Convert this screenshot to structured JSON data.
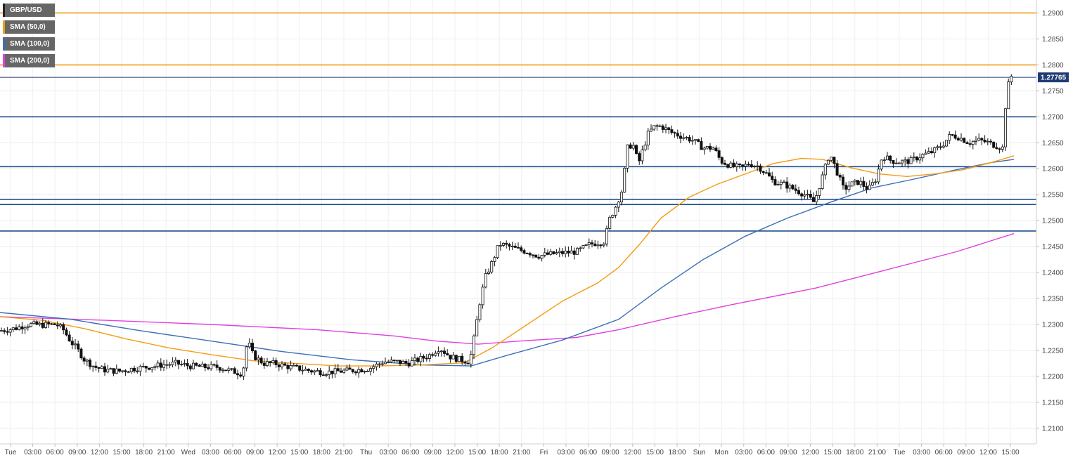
{
  "chart_data": {
    "type": "candlestick",
    "symbol": "GBP/USD",
    "ylim": [
      1.207,
      1.2925
    ],
    "y_ticks": [
      "1.2900",
      "1.2850",
      "1.2800",
      "1.2750",
      "1.2700",
      "1.2650",
      "1.2600",
      "1.2550",
      "1.2500",
      "1.2450",
      "1.2400",
      "1.2350",
      "1.2300",
      "1.2250",
      "1.2200",
      "1.2150",
      "1.2100"
    ],
    "x_ticks": [
      "Tue",
      "03:00",
      "06:00",
      "09:00",
      "12:00",
      "15:00",
      "18:00",
      "21:00",
      "Wed",
      "03:00",
      "06:00",
      "09:00",
      "12:00",
      "15:00",
      "18:00",
      "21:00",
      "Thu",
      "03:00",
      "06:00",
      "09:00",
      "12:00",
      "15:00",
      "18:00",
      "21:00",
      "Fri",
      "03:00",
      "06:00",
      "09:00",
      "12:00",
      "15:00",
      "18:00",
      "Sun",
      "Mon",
      "03:00",
      "06:00",
      "09:00",
      "12:00",
      "15:00",
      "18:00",
      "21:00",
      "Tue",
      "03:00",
      "06:00",
      "09:00",
      "12:00",
      "15:00"
    ],
    "last_price": "1.27765",
    "horizontal_levels": [
      {
        "value": 1.29,
        "color": "#f39c12"
      },
      {
        "value": 1.28,
        "color": "#f39c12"
      },
      {
        "value": 1.2776,
        "color": "#1f3b73"
      },
      {
        "value": 1.27,
        "color": "#1f4e8c"
      },
      {
        "value": 1.2604,
        "color": "#1f4e8c"
      },
      {
        "value": 1.2541,
        "color": "#1f4e8c"
      },
      {
        "value": 1.2531,
        "color": "#1f4e8c"
      },
      {
        "value": 1.248,
        "color": "#1f4e8c"
      }
    ],
    "legend": [
      {
        "label": "GBP/USD",
        "color": "#222222"
      },
      {
        "label": "SMA (50,0)",
        "color": "#f39c12"
      },
      {
        "label": "SMA (100,0)",
        "color": "#3a6fb7"
      },
      {
        "label": "SMA (200,0)",
        "color": "#e040e0"
      }
    ],
    "price_path": [
      [
        0,
        1.2288
      ],
      [
        20,
        1.2292
      ],
      [
        40,
        1.23
      ],
      [
        60,
        1.2299
      ],
      [
        80,
        1.23
      ],
      [
        90,
        1.229
      ],
      [
        100,
        1.2268
      ],
      [
        110,
        1.2252
      ],
      [
        120,
        1.2232
      ],
      [
        135,
        1.2218
      ],
      [
        150,
        1.2212
      ],
      [
        170,
        1.221
      ],
      [
        190,
        1.2215
      ],
      [
        210,
        1.2218
      ],
      [
        230,
        1.2222
      ],
      [
        250,
        1.2225
      ],
      [
        270,
        1.222
      ],
      [
        290,
        1.2218
      ],
      [
        310,
        1.2218
      ],
      [
        330,
        1.221
      ],
      [
        345,
        1.2205
      ],
      [
        352,
        1.227
      ],
      [
        360,
        1.224
      ],
      [
        375,
        1.2225
      ],
      [
        390,
        1.2225
      ],
      [
        405,
        1.222
      ],
      [
        425,
        1.2215
      ],
      [
        445,
        1.221
      ],
      [
        465,
        1.2208
      ],
      [
        485,
        1.221
      ],
      [
        505,
        1.2212
      ],
      [
        525,
        1.2215
      ],
      [
        545,
        1.2228
      ],
      [
        565,
        1.2228
      ],
      [
        580,
        1.2225
      ],
      [
        595,
        1.2232
      ],
      [
        610,
        1.224
      ],
      [
        625,
        1.2255
      ],
      [
        640,
        1.2238
      ],
      [
        655,
        1.2232
      ],
      [
        668,
        1.2228
      ],
      [
        675,
        1.228
      ],
      [
        682,
        1.234
      ],
      [
        690,
        1.239
      ],
      [
        700,
        1.242
      ],
      [
        710,
        1.2455
      ],
      [
        720,
        1.2452
      ],
      [
        735,
        1.2445
      ],
      [
        750,
        1.244
      ],
      [
        765,
        1.2432
      ],
      [
        780,
        1.2435
      ],
      [
        800,
        1.2438
      ],
      [
        820,
        1.244
      ],
      [
        840,
        1.2455
      ],
      [
        860,
        1.246
      ],
      [
        866,
        1.25
      ],
      [
        875,
        1.2525
      ],
      [
        885,
        1.256
      ],
      [
        892,
        1.264
      ],
      [
        900,
        1.2648
      ],
      [
        908,
        1.261
      ],
      [
        915,
        1.264
      ],
      [
        922,
        1.2668
      ],
      [
        930,
        1.268
      ],
      [
        940,
        1.2682
      ],
      [
        955,
        1.267
      ],
      [
        970,
        1.2662
      ],
      [
        985,
        1.2655
      ],
      [
        1000,
        1.264
      ],
      [
        1015,
        1.264
      ],
      [
        1025,
        1.2615
      ],
      [
        1040,
        1.2605
      ],
      [
        1055,
        1.2602
      ],
      [
        1065,
        1.261
      ],
      [
        1078,
        1.2605
      ],
      [
        1090,
        1.259
      ],
      [
        1100,
        1.2575
      ],
      [
        1115,
        1.257
      ],
      [
        1130,
        1.256
      ],
      [
        1145,
        1.255
      ],
      [
        1158,
        1.2535
      ],
      [
        1168,
        1.2578
      ],
      [
        1180,
        1.263
      ],
      [
        1190,
        1.2595
      ],
      [
        1200,
        1.256
      ],
      [
        1210,
        1.257
      ],
      [
        1222,
        1.2575
      ],
      [
        1235,
        1.256
      ],
      [
        1245,
        1.2578
      ],
      [
        1255,
        1.2625
      ],
      [
        1268,
        1.2615
      ],
      [
        1282,
        1.2613
      ],
      [
        1295,
        1.2615
      ],
      [
        1310,
        1.2625
      ],
      [
        1325,
        1.2632
      ],
      [
        1340,
        1.2645
      ],
      [
        1352,
        1.2665
      ],
      [
        1365,
        1.266
      ],
      [
        1378,
        1.265
      ],
      [
        1390,
        1.2655
      ],
      [
        1402,
        1.2652
      ],
      [
        1415,
        1.2645
      ],
      [
        1426,
        1.264
      ],
      [
        1430,
        1.272
      ],
      [
        1436,
        1.278
      ],
      [
        1442,
        1.2776
      ]
    ],
    "sma_50": [
      [
        0,
        1.2315
      ],
      [
        60,
        1.2308
      ],
      [
        120,
        1.2292
      ],
      [
        180,
        1.2272
      ],
      [
        240,
        1.2255
      ],
      [
        300,
        1.2242
      ],
      [
        360,
        1.223
      ],
      [
        420,
        1.2225
      ],
      [
        480,
        1.222
      ],
      [
        540,
        1.222
      ],
      [
        600,
        1.2222
      ],
      [
        660,
        1.2226
      ],
      [
        700,
        1.2255
      ],
      [
        750,
        1.23
      ],
      [
        800,
        1.2345
      ],
      [
        850,
        1.238
      ],
      [
        880,
        1.241
      ],
      [
        910,
        1.2455
      ],
      [
        940,
        1.2505
      ],
      [
        980,
        1.2545
      ],
      [
        1020,
        1.257
      ],
      [
        1060,
        1.259
      ],
      [
        1100,
        1.261
      ],
      [
        1140,
        1.262
      ],
      [
        1170,
        1.2618
      ],
      [
        1210,
        1.2602
      ],
      [
        1250,
        1.259
      ],
      [
        1290,
        1.2585
      ],
      [
        1330,
        1.259
      ],
      [
        1370,
        1.2598
      ],
      [
        1410,
        1.2612
      ],
      [
        1442,
        1.2625
      ]
    ],
    "sma_100": [
      [
        0,
        1.2323
      ],
      [
        100,
        1.231
      ],
      [
        200,
        1.2288
      ],
      [
        300,
        1.2268
      ],
      [
        400,
        1.2248
      ],
      [
        500,
        1.2232
      ],
      [
        600,
        1.2222
      ],
      [
        670,
        1.222
      ],
      [
        720,
        1.224
      ],
      [
        800,
        1.227
      ],
      [
        880,
        1.231
      ],
      [
        940,
        1.237
      ],
      [
        1000,
        1.2425
      ],
      [
        1060,
        1.247
      ],
      [
        1120,
        1.2505
      ],
      [
        1180,
        1.2535
      ],
      [
        1240,
        1.2563
      ],
      [
        1300,
        1.258
      ],
      [
        1360,
        1.2598
      ],
      [
        1410,
        1.2612
      ],
      [
        1442,
        1.2618
      ]
    ],
    "sma_200": [
      [
        0,
        1.2315
      ],
      [
        150,
        1.2308
      ],
      [
        300,
        1.23
      ],
      [
        450,
        1.229
      ],
      [
        560,
        1.2278
      ],
      [
        620,
        1.2268
      ],
      [
        680,
        1.2262
      ],
      [
        740,
        1.2268
      ],
      [
        820,
        1.2275
      ],
      [
        880,
        1.229
      ],
      [
        960,
        1.2315
      ],
      [
        1040,
        1.2338
      ],
      [
        1160,
        1.237
      ],
      [
        1260,
        1.2405
      ],
      [
        1360,
        1.244
      ],
      [
        1442,
        1.2475
      ]
    ]
  }
}
